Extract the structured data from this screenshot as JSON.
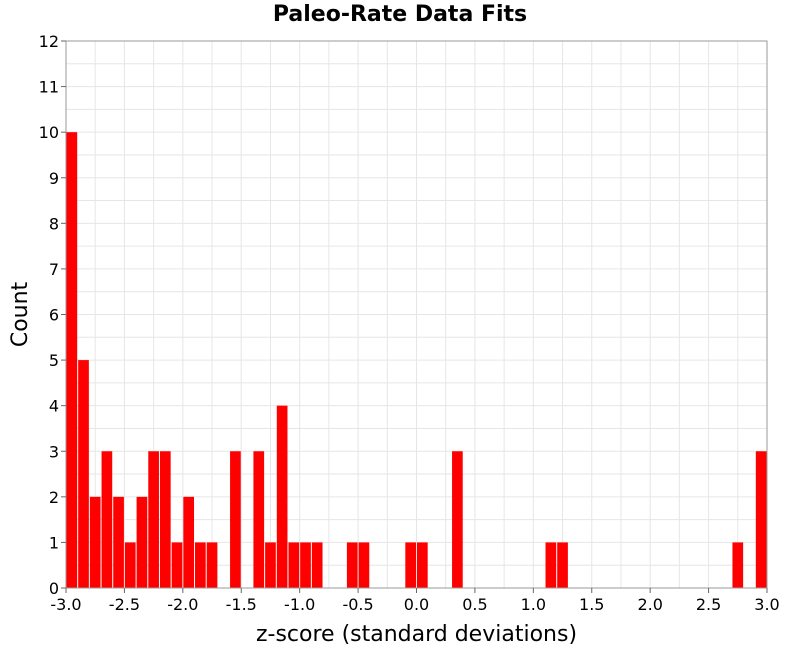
{
  "chart_data": {
    "type": "bar",
    "title": "Paleo-Rate Data Fits",
    "xlabel": "z-score (standard deviations)",
    "ylabel": "Count",
    "xlim": [
      -3.0,
      3.0
    ],
    "ylim": [
      0,
      12
    ],
    "bin_width": 0.1,
    "grid": true,
    "bar_color": "#ff0000",
    "x_ticks": [
      "-3.0",
      "-2.5",
      "-2.0",
      "-1.5",
      "-1.0",
      "-0.5",
      "0.0",
      "0.5",
      "1.0",
      "1.5",
      "2.0",
      "2.5",
      "3.0"
    ],
    "y_ticks": [
      "0",
      "1",
      "2",
      "3",
      "4",
      "5",
      "6",
      "7",
      "8",
      "9",
      "10",
      "11",
      "12"
    ],
    "bins": [
      {
        "x": -2.95,
        "count": 10
      },
      {
        "x": -2.85,
        "count": 5
      },
      {
        "x": -2.75,
        "count": 2
      },
      {
        "x": -2.65,
        "count": 3
      },
      {
        "x": -2.55,
        "count": 2
      },
      {
        "x": -2.45,
        "count": 1
      },
      {
        "x": -2.35,
        "count": 2
      },
      {
        "x": -2.25,
        "count": 3
      },
      {
        "x": -2.15,
        "count": 3
      },
      {
        "x": -2.05,
        "count": 1
      },
      {
        "x": -1.95,
        "count": 2
      },
      {
        "x": -1.85,
        "count": 1
      },
      {
        "x": -1.75,
        "count": 1
      },
      {
        "x": -1.55,
        "count": 3
      },
      {
        "x": -1.35,
        "count": 3
      },
      {
        "x": -1.25,
        "count": 1
      },
      {
        "x": -1.15,
        "count": 4
      },
      {
        "x": -1.05,
        "count": 1
      },
      {
        "x": -0.95,
        "count": 1
      },
      {
        "x": -0.85,
        "count": 1
      },
      {
        "x": -0.55,
        "count": 1
      },
      {
        "x": -0.45,
        "count": 1
      },
      {
        "x": -0.05,
        "count": 1
      },
      {
        "x": 0.05,
        "count": 1
      },
      {
        "x": 0.35,
        "count": 3
      },
      {
        "x": 1.15,
        "count": 1
      },
      {
        "x": 1.25,
        "count": 1
      },
      {
        "x": 2.75,
        "count": 1
      },
      {
        "x": 2.95,
        "count": 3
      }
    ]
  }
}
